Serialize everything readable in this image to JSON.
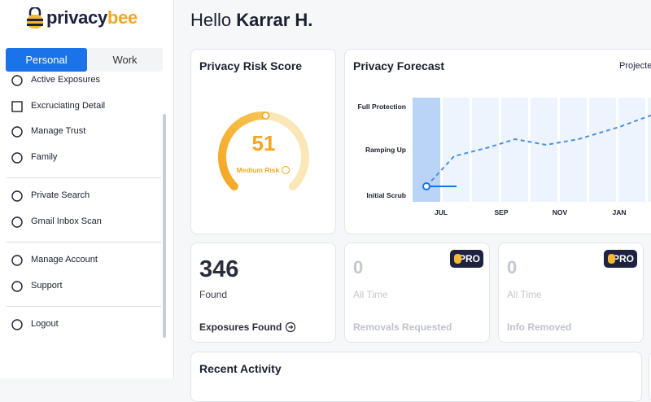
{
  "brand": {
    "first": "privacy",
    "second": "bee"
  },
  "tabs": [
    "Personal",
    "Work"
  ],
  "nav": [
    [
      "Active Exposures",
      "Excruciating Detail",
      "Manage Trust",
      "Family"
    ],
    [
      "Private Search",
      "Gmail Inbox Scan"
    ],
    [
      "Manage Account",
      "Support"
    ],
    [
      "Logout"
    ]
  ],
  "greeting": {
    "prefix": "Hello",
    "name": "Karrar H."
  },
  "risk_card": {
    "title": "Privacy Risk Score",
    "score": 51,
    "label": "Medium Risk"
  },
  "forecast_card": {
    "title": "Privacy Forecast",
    "link": "Projected",
    "levels": [
      "Full Protection",
      "Ramping Up",
      "Initial Scrub"
    ],
    "months": [
      "JUL",
      "SEP",
      "NOV",
      "JAN"
    ]
  },
  "stats": [
    {
      "value": 346,
      "caption": "Found",
      "title": "Exposures Found"
    },
    {
      "value": 0,
      "caption": "All Time",
      "title": "Removals Requested",
      "badge": "PRO"
    },
    {
      "value": 0,
      "caption": "All Time",
      "title": "Info Removed",
      "badge": "PRO"
    }
  ],
  "recent_card": {
    "title": "Recent Activity"
  }
}
